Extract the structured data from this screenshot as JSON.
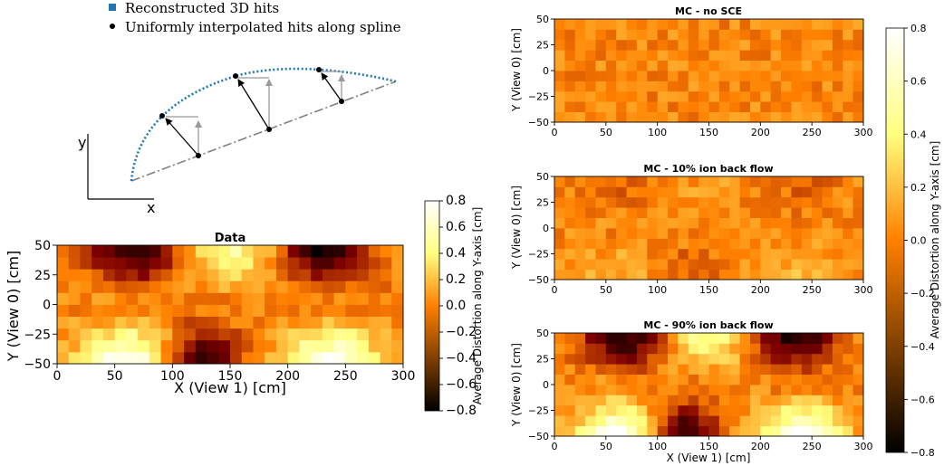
{
  "schematic": {
    "legend": [
      {
        "label": "Reconstructed 3D hits",
        "marker": "square",
        "color": "#1f77b4"
      },
      {
        "label": "Uniformly interpolated hits along spline",
        "marker": "circle",
        "color": "#000000"
      }
    ],
    "axis_labels": {
      "x": "x",
      "y": "y"
    }
  },
  "chart_data": [
    {
      "id": "data",
      "type": "heatmap",
      "title": "Data",
      "xlabel": "X (View 1) [cm]",
      "ylabel": "Y (View 0) [cm]",
      "xlim": [
        0,
        300
      ],
      "ylim": [
        -50,
        50
      ],
      "xticks": [
        0,
        50,
        100,
        150,
        200,
        250,
        300
      ],
      "yticks": [
        -50,
        -25,
        0,
        25,
        50
      ],
      "n_cols": 30,
      "n_rows": 10,
      "colormap": "afmhot",
      "clim": [
        -0.8,
        0.8
      ],
      "pattern": {
        "top": 1,
        "bottom": 1
      },
      "colorbar": {
        "label": "Average Distortion along Y-axis [cm]",
        "ticks": [
          0.8,
          0.6,
          0.4,
          0.2,
          0.0,
          -0.2,
          -0.4,
          -0.6,
          -0.8
        ]
      }
    },
    {
      "id": "mc-nosce",
      "type": "heatmap",
      "title": "MC - no SCE",
      "ylabel": "Y (View 0) [cm]",
      "xlim": [
        0,
        300
      ],
      "ylim": [
        -50,
        50
      ],
      "xticks": [
        0,
        50,
        100,
        150,
        200,
        250,
        300
      ],
      "yticks": [
        -50,
        -25,
        0,
        25,
        50
      ],
      "n_cols": 30,
      "n_rows": 10,
      "colormap": "afmhot",
      "clim": [
        -0.8,
        0.8
      ],
      "pattern": {
        "top": 0,
        "bottom": 0
      }
    },
    {
      "id": "mc-10",
      "type": "heatmap",
      "title": "MC - 10% ion back flow",
      "ylabel": "Y (View 0) [cm]",
      "xlim": [
        0,
        300
      ],
      "ylim": [
        -50,
        50
      ],
      "xticks": [
        0,
        50,
        100,
        150,
        200,
        250,
        300
      ],
      "yticks": [
        -50,
        -25,
        0,
        25,
        50
      ],
      "n_cols": 30,
      "n_rows": 10,
      "colormap": "afmhot",
      "clim": [
        -0.8,
        0.8
      ],
      "pattern": {
        "top": 0.15,
        "bottom": 0.2
      }
    },
    {
      "id": "mc-90",
      "type": "heatmap",
      "title": "MC - 90% ion back flow",
      "xlabel": "X (View 1) [cm]",
      "ylabel": "Y (View 0) [cm]",
      "xlim": [
        0,
        300
      ],
      "ylim": [
        -50,
        50
      ],
      "xticks": [
        0,
        50,
        100,
        150,
        200,
        250,
        300
      ],
      "yticks": [
        -50,
        -25,
        0,
        25,
        50
      ],
      "n_cols": 30,
      "n_rows": 10,
      "colormap": "afmhot",
      "clim": [
        -0.8,
        0.8
      ],
      "pattern": {
        "top": 1,
        "bottom": 1
      },
      "colorbar": {
        "label": "Average Distortion along Y-axis [cm]",
        "ticks": [
          0.8,
          0.6,
          0.4,
          0.2,
          0.0,
          -0.2,
          -0.4,
          -0.6,
          -0.8
        ]
      }
    }
  ]
}
